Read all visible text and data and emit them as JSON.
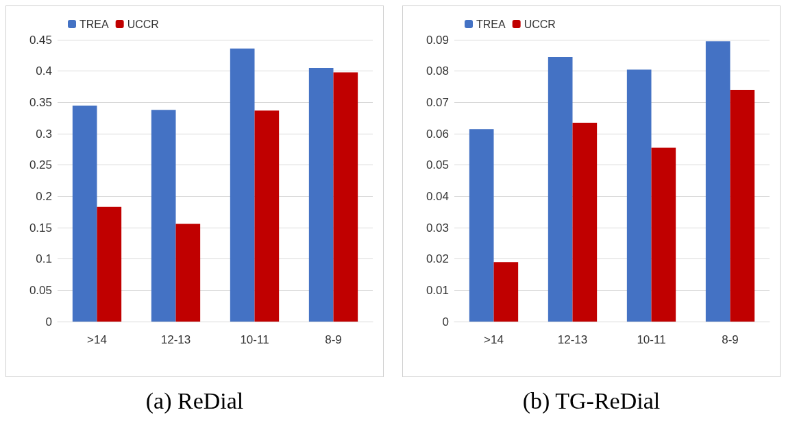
{
  "chart_data": [
    {
      "type": "bar",
      "title": "(a) ReDial",
      "categories": [
        ">14",
        "12-13",
        "10-11",
        "8-9"
      ],
      "series": [
        {
          "name": "TREA",
          "color": "#4472c4",
          "values": [
            0.345,
            0.338,
            0.436,
            0.405
          ]
        },
        {
          "name": "UCCR",
          "color": "#c00000",
          "values": [
            0.183,
            0.156,
            0.337,
            0.398
          ]
        }
      ],
      "ylim": [
        0,
        0.45
      ],
      "yticks": [
        0,
        0.05,
        0.1,
        0.15,
        0.2,
        0.25,
        0.3,
        0.35,
        0.4,
        0.45
      ],
      "grid": "y",
      "legend": "top left"
    },
    {
      "type": "bar",
      "title": "(b) TG-ReDial",
      "categories": [
        ">14",
        "12-13",
        "10-11",
        "8-9"
      ],
      "series": [
        {
          "name": "TREA",
          "color": "#4472c4",
          "values": [
            0.0615,
            0.0845,
            0.0805,
            0.0895
          ]
        },
        {
          "name": "UCCR",
          "color": "#c00000",
          "values": [
            0.019,
            0.0635,
            0.0555,
            0.074
          ]
        }
      ],
      "ylim": [
        0,
        0.09
      ],
      "yticks": [
        0,
        0.01,
        0.02,
        0.03,
        0.04,
        0.05,
        0.06,
        0.07,
        0.08,
        0.09
      ],
      "grid": "y",
      "legend": "top left"
    }
  ]
}
